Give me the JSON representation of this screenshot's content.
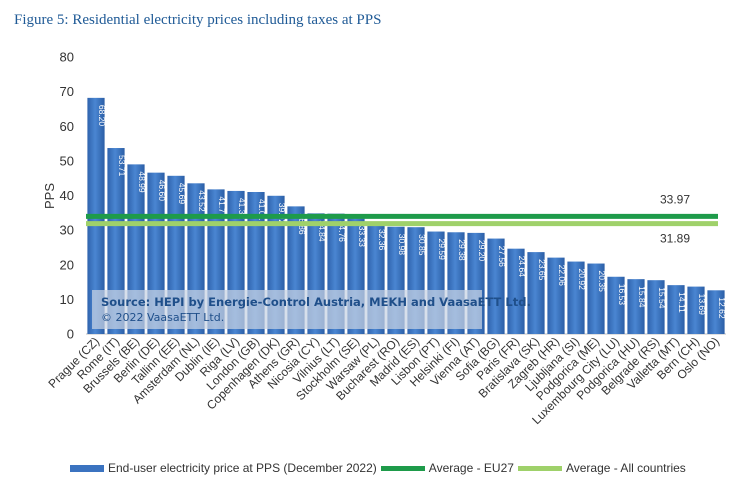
{
  "figure_title": "Figure 5: Residential electricity prices including taxes at PPS",
  "chart_data": {
    "type": "bar",
    "ylabel": "PPS",
    "xlabel": "",
    "ylim": [
      0,
      80
    ],
    "yticks": [
      0,
      10,
      20,
      30,
      40,
      50,
      60,
      70,
      80
    ],
    "categories": [
      "Prague (CZ)",
      "Rome (IT)",
      "Brussels (BE)",
      "Berlin (DE)",
      "Tallinn (EE)",
      "Amsterdam (NL)",
      "Dublin (IE)",
      "Riga (LV)",
      "London (GB)",
      "Copenhagen (DK)",
      "Athens (GR)",
      "Nicosia (CY)",
      "Vilnius (LT)",
      "Stockholm (SE)",
      "Warsaw (PL)",
      "Bucharest (RO)",
      "Madrid (ES)",
      "Lisbon (PT)",
      "Helsinki (FI)",
      "Vienna (AT)",
      "Sofia (BG)",
      "Paris (FR)",
      "Bratislava (SK)",
      "Zagreb (HR)",
      "Ljubljana (SI)",
      "Podgorica (ME)",
      "Luxembourg City (LU)",
      "Podgorica (HU)",
      "Belgrade (RS)",
      "Valletta (MT)",
      "Bern (CH)",
      "Oslo (NO)"
    ],
    "series": [
      {
        "name": "End-user electricity price at PPS (December 2022)",
        "type": "bar",
        "values": [
          68.2,
          53.71,
          48.99,
          46.6,
          45.69,
          43.52,
          41.77,
          41.32,
          41.01,
          39.92,
          36.86,
          34.84,
          34.76,
          33.33,
          32.36,
          30.98,
          30.85,
          29.59,
          29.38,
          29.2,
          27.56,
          24.64,
          23.65,
          22.06,
          20.92,
          20.35,
          16.53,
          15.84,
          15.54,
          14.11,
          13.69,
          12.62
        ],
        "labels": [
          "68.20",
          "53.71",
          "48.99",
          "46.60",
          "45.69",
          "43.52",
          "41.77",
          "41.32",
          "41.01",
          "39.92",
          "36.86",
          "34.84",
          "34.76",
          "33.33",
          "32.36",
          "30.98",
          "30.85",
          "29.59",
          "29.38",
          "29.20",
          "27.56",
          "24.64",
          "23.65",
          "22.06",
          "20.92",
          "20.35",
          "16.53",
          "15.84",
          "15.54",
          "14.11",
          "13.69",
          "12.62"
        ],
        "color": "#3b73c0"
      },
      {
        "name": "Average - EU27",
        "type": "line",
        "value": 33.97,
        "label": "33.97",
        "color": "#1e9b4a"
      },
      {
        "name": "Average - All countries",
        "type": "line",
        "value": 31.89,
        "label": "31.89",
        "color": "#9fd16a"
      }
    ],
    "annotation": {
      "source": "Source: HEPI by Energie-Control Austria, MEKH and VaasaETT Ltd.",
      "copyright": "© 2022 VaasaETT Ltd."
    },
    "grid": false,
    "legend_position": "bottom"
  }
}
